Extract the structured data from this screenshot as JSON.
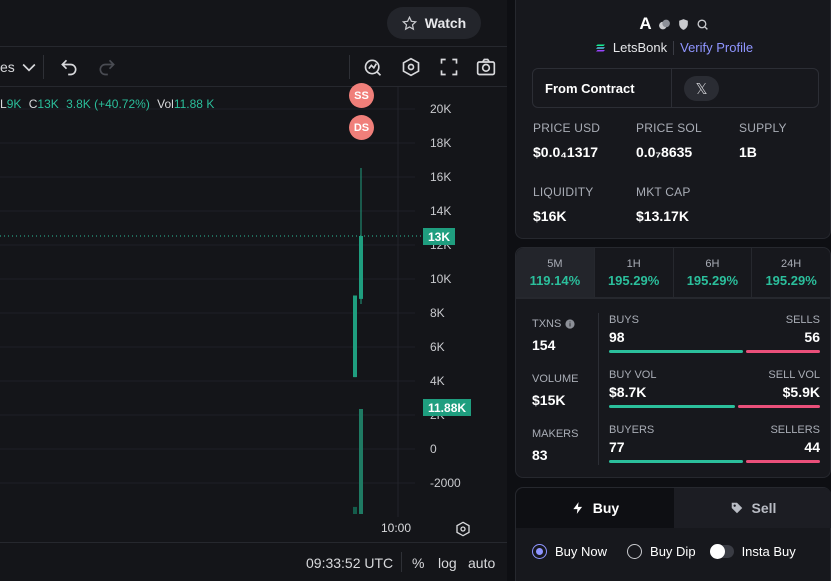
{
  "header": {
    "watch_label": "Watch"
  },
  "toolbar": {
    "timeframe_label": "es"
  },
  "ohlc": {
    "l_label": "L",
    "l_value": "9K",
    "c_label": "C",
    "c_value": "13K",
    "change": "3.8K (+40.72%)",
    "vol_label": "Vol",
    "vol_value": "11.88 K"
  },
  "chart_data": {
    "type": "candlestick",
    "y_ticks": [
      "20K",
      "18K",
      "16K",
      "14K",
      "12K",
      "10K",
      "8K",
      "6K",
      "4K",
      "2K",
      "0",
      "-2000"
    ],
    "ylim": [
      -3000,
      22000
    ],
    "x_ticks": [
      "10:00"
    ],
    "price_candles": [
      {
        "open": 4700,
        "close": 9500,
        "high": 9500,
        "low": 4700,
        "color": "#1f9e7f"
      },
      {
        "open": 9300,
        "close": 13000,
        "high": 17000,
        "low": 9000,
        "color": "#1f9e7f"
      }
    ],
    "volume_bars": [
      {
        "value": 800,
        "color": "#145c4b"
      },
      {
        "value": 11880,
        "color": "#1f7a63"
      }
    ],
    "markers": [
      "SS",
      "DS"
    ],
    "last_price_tag": "13K",
    "volume_tag": "11.88K",
    "last_price": 13000,
    "last_volume": 11880
  },
  "status_bar": {
    "time": "09:33:52 UTC",
    "percent": "%",
    "log": "log",
    "auto": "auto"
  },
  "token": {
    "symbol": "A",
    "launchpad": "LetsBonk",
    "verify_label": "Verify Profile",
    "contract_label": "From Contract",
    "x_icon": "𝕏"
  },
  "stats": [
    {
      "label": "PRICE USD",
      "value": "$0.0₄1317"
    },
    {
      "label": "PRICE SOL",
      "value": "0.0₇8635"
    },
    {
      "label": "SUPPLY",
      "value": "1B"
    },
    {
      "label": "LIQUIDITY",
      "value": "$16K"
    },
    {
      "label": "MKT CAP",
      "value": "$13.17K"
    }
  ],
  "changes": [
    {
      "label": "5M",
      "value": "119.14%"
    },
    {
      "label": "1H",
      "value": "195.29%"
    },
    {
      "label": "6H",
      "value": "195.29%"
    },
    {
      "label": "24H",
      "value": "195.29%"
    }
  ],
  "txns": {
    "txns_label": "TXNS",
    "txns_value": "154",
    "volume_label": "VOLUME",
    "volume_value": "$15K",
    "makers_label": "MAKERS",
    "makers_value": "83",
    "groups": [
      {
        "left_label": "BUYS",
        "right_label": "SELLS",
        "left_value": "98",
        "right_value": "56",
        "buy_share": 0.636
      },
      {
        "left_label": "BUY VOL",
        "right_label": "SELL VOL",
        "left_value": "$8.7K",
        "right_value": "$5.9K",
        "buy_share": 0.596
      },
      {
        "left_label": "BUYERS",
        "right_label": "SELLERS",
        "left_value": "77",
        "right_value": "44",
        "buy_share": 0.636
      }
    ]
  },
  "trade": {
    "buy_label": "Buy",
    "sell_label": "Sell",
    "buy_now_label": "Buy Now",
    "buy_dip_label": "Buy Dip",
    "insta_buy_label": "Insta Buy"
  },
  "colors": {
    "up": "#2bbf9c",
    "down": "#ea4f7a",
    "accent": "#8f95ff",
    "marker": "#f07f7a"
  }
}
